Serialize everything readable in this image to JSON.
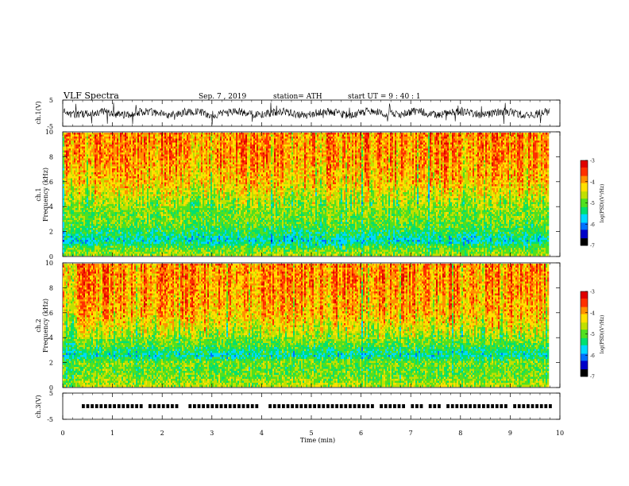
{
  "header": {
    "title": "VLF  Spectra",
    "date": "Sep. 7  , 2019",
    "station": "station= ATH",
    "start": "start  UT  =   9  : 40 : 1"
  },
  "colorbar": {
    "label": "log(PSD)(V²/Hz)",
    "ticks": [
      "-3",
      "-4",
      "-5",
      "-6",
      "-7"
    ],
    "range": [
      -7,
      -3
    ],
    "colors": [
      "#000000",
      "#0000c8",
      "#0070ff",
      "#00d8ff",
      "#00e070",
      "#50e020",
      "#c0e000",
      "#ffe000",
      "#ff9000",
      "#ff3000",
      "#e00000",
      "#ffffff"
    ]
  },
  "chart_data": [
    {
      "type": "line",
      "ylabel": "ch.1(V)",
      "yticks": [
        "5",
        "-5"
      ],
      "ylim": [
        -5,
        5
      ],
      "xlim": [
        0,
        10
      ],
      "note": "raw waveform, dense noise around 0 V with spikes"
    },
    {
      "type": "heatmap",
      "ylabel": "Frequency  (kHz)",
      "channel": "ch.1",
      "yticks": [
        "0",
        "2",
        "4",
        "6",
        "8",
        "10"
      ],
      "ylim": [
        0,
        10
      ],
      "xlim": [
        0,
        9.8
      ],
      "zlim": [
        -7,
        -3
      ],
      "profile": [
        {
          "f": 0.2,
          "logpsd": -4.8
        },
        {
          "f": 0.6,
          "logpsd": -5.0
        },
        {
          "f": 1.2,
          "logpsd": -5.6
        },
        {
          "f": 1.8,
          "logpsd": -5.3
        },
        {
          "f": 2.5,
          "logpsd": -5.0
        },
        {
          "f": 3.5,
          "logpsd": -4.9
        },
        {
          "f": 4.5,
          "logpsd": -4.7
        },
        {
          "f": 6,
          "logpsd": -4.2
        },
        {
          "f": 8,
          "logpsd": -3.95
        },
        {
          "f": 10,
          "logpsd": -3.9
        }
      ]
    },
    {
      "type": "heatmap",
      "ylabel": "Frequency  (kHz)",
      "channel": "ch.2",
      "yticks": [
        "0",
        "2",
        "4",
        "6",
        "8",
        "10"
      ],
      "ylim": [
        0,
        10
      ],
      "xlim": [
        0,
        9.8
      ],
      "zlim": [
        -7,
        -3
      ],
      "profile": [
        {
          "f": 0.2,
          "logpsd": -4.7
        },
        {
          "f": 0.8,
          "logpsd": -4.9
        },
        {
          "f": 1.5,
          "logpsd": -5.0
        },
        {
          "f": 2.0,
          "logpsd": -4.9
        },
        {
          "f": 2.5,
          "logpsd": -5.5
        },
        {
          "f": 3.5,
          "logpsd": -5.0
        },
        {
          "f": 4.5,
          "logpsd": -4.6
        },
        {
          "f": 6,
          "logpsd": -4.1
        },
        {
          "f": 8,
          "logpsd": -3.95
        },
        {
          "f": 10,
          "logpsd": -3.9
        }
      ]
    },
    {
      "type": "line",
      "ylabel": "ch.3(V)",
      "yticks": [
        "5",
        "-5"
      ],
      "ylim": [
        -5,
        5
      ],
      "xlim": [
        0,
        10
      ],
      "level": 0,
      "note": "square pulse train near 0 V"
    }
  ],
  "xaxis": {
    "label": "Time  (min)",
    "ticks": [
      "0",
      "1",
      "2",
      "3",
      "4",
      "5",
      "6",
      "7",
      "8",
      "9",
      "10"
    ],
    "range": [
      0,
      10
    ]
  }
}
